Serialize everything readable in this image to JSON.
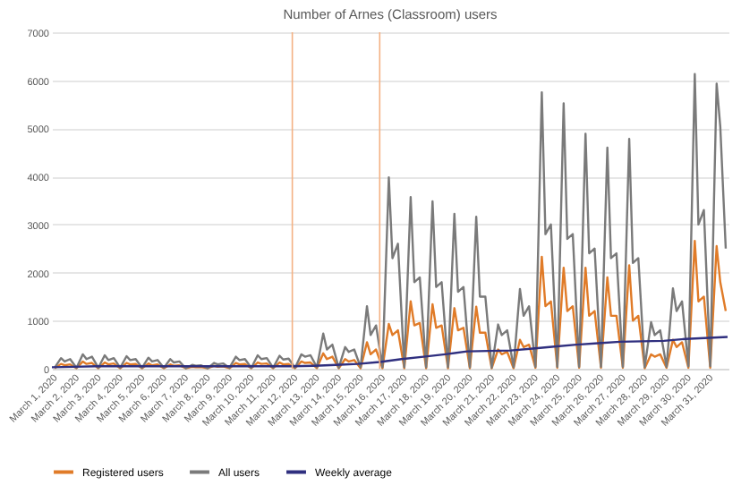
{
  "chart_data": {
    "type": "line",
    "title": "Number of Arnes (Classroom) users",
    "x": [
      "2020-03-01T03:00",
      "2020-03-01T10:00",
      "2020-03-01T14:00",
      "2020-03-01T20:00",
      "2020-03-02T03:00",
      "2020-03-02T10:00",
      "2020-03-02T14:00",
      "2020-03-02T20:00",
      "2020-03-03T03:00",
      "2020-03-03T10:00",
      "2020-03-03T14:00",
      "2020-03-03T20:00",
      "2020-03-04T03:00",
      "2020-03-04T10:00",
      "2020-03-04T14:00",
      "2020-03-04T20:00",
      "2020-03-05T03:00",
      "2020-03-05T10:00",
      "2020-03-05T14:00",
      "2020-03-05T20:00",
      "2020-03-06T03:00",
      "2020-03-06T10:00",
      "2020-03-06T14:00",
      "2020-03-06T20:00",
      "2020-03-07T03:00",
      "2020-03-07T10:00",
      "2020-03-07T14:00",
      "2020-03-07T20:00",
      "2020-03-08T03:00",
      "2020-03-08T10:00",
      "2020-03-08T14:00",
      "2020-03-08T20:00",
      "2020-03-09T03:00",
      "2020-03-09T10:00",
      "2020-03-09T14:00",
      "2020-03-09T20:00",
      "2020-03-10T03:00",
      "2020-03-10T10:00",
      "2020-03-10T14:00",
      "2020-03-10T20:00",
      "2020-03-11T03:00",
      "2020-03-11T10:00",
      "2020-03-11T14:00",
      "2020-03-11T20:00",
      "2020-03-12T03:00",
      "2020-03-12T10:00",
      "2020-03-12T14:00",
      "2020-03-12T20:00",
      "2020-03-13T03:00",
      "2020-03-13T10:00",
      "2020-03-13T14:00",
      "2020-03-13T20:00",
      "2020-03-14T03:00",
      "2020-03-14T10:00",
      "2020-03-14T14:00",
      "2020-03-14T20:00",
      "2020-03-15T03:00",
      "2020-03-15T10:00",
      "2020-03-15T14:00",
      "2020-03-15T20:00",
      "2020-03-16T03:00",
      "2020-03-16T10:00",
      "2020-03-16T14:00",
      "2020-03-16T20:00",
      "2020-03-17T03:00",
      "2020-03-17T10:00",
      "2020-03-17T14:00",
      "2020-03-17T20:00",
      "2020-03-18T03:00",
      "2020-03-18T10:00",
      "2020-03-18T14:00",
      "2020-03-18T20:00",
      "2020-03-19T03:00",
      "2020-03-19T10:00",
      "2020-03-19T14:00",
      "2020-03-19T20:00",
      "2020-03-20T03:00",
      "2020-03-20T10:00",
      "2020-03-20T14:00",
      "2020-03-20T20:00",
      "2020-03-21T03:00",
      "2020-03-21T10:00",
      "2020-03-21T14:00",
      "2020-03-21T20:00",
      "2020-03-22T03:00",
      "2020-03-22T10:00",
      "2020-03-22T14:00",
      "2020-03-22T20:00",
      "2020-03-23T03:00",
      "2020-03-23T10:00",
      "2020-03-23T14:00",
      "2020-03-23T20:00",
      "2020-03-24T03:00",
      "2020-03-24T10:00",
      "2020-03-24T14:00",
      "2020-03-24T20:00",
      "2020-03-25T03:00",
      "2020-03-25T10:00",
      "2020-03-25T14:00",
      "2020-03-25T20:00",
      "2020-03-26T03:00",
      "2020-03-26T10:00",
      "2020-03-26T14:00",
      "2020-03-26T20:00",
      "2020-03-27T03:00",
      "2020-03-27T10:00",
      "2020-03-27T14:00",
      "2020-03-27T20:00",
      "2020-03-28T03:00",
      "2020-03-28T10:00",
      "2020-03-28T14:00",
      "2020-03-28T20:00",
      "2020-03-29T03:00",
      "2020-03-29T10:00",
      "2020-03-29T14:00",
      "2020-03-29T20:00",
      "2020-03-30T03:00",
      "2020-03-30T10:00",
      "2020-03-30T14:00",
      "2020-03-30T20:00",
      "2020-03-31T03:00",
      "2020-03-31T10:00",
      "2020-03-31T14:00",
      "2020-03-31T20:00"
    ],
    "series": [
      {
        "name": "Registered users",
        "color": "#e07b28",
        "values": [
          10,
          100,
          70,
          90,
          10,
          150,
          100,
          120,
          10,
          130,
          90,
          110,
          10,
          120,
          90,
          100,
          10,
          110,
          70,
          90,
          10,
          90,
          60,
          70,
          10,
          40,
          30,
          35,
          10,
          60,
          40,
          50,
          10,
          120,
          90,
          100,
          10,
          130,
          100,
          110,
          10,
          130,
          90,
          100,
          10,
          150,
          120,
          130,
          10,
          320,
          200,
          250,
          10,
          200,
          150,
          180,
          10,
          550,
          300,
          400,
          10,
          930,
          700,
          800,
          10,
          1400,
          900,
          950,
          10,
          1340,
          850,
          900,
          10,
          1260,
          800,
          850,
          10,
          1290,
          750,
          750,
          10,
          400,
          300,
          350,
          10,
          600,
          450,
          500,
          20,
          2330,
          1300,
          1400,
          20,
          2100,
          1200,
          1300,
          20,
          2100,
          1100,
          1200,
          20,
          1900,
          1100,
          1100,
          20,
          2150,
          1000,
          1100,
          10,
          300,
          250,
          300,
          20,
          600,
          450,
          550,
          20,
          2660,
          1400,
          1500,
          20,
          2550,
          1800,
          1200
        ]
      },
      {
        "name": "All users",
        "color": "#7a7a7a",
        "values": [
          20,
          220,
          150,
          200,
          20,
          300,
          200,
          250,
          20,
          280,
          180,
          220,
          20,
          260,
          180,
          200,
          20,
          230,
          150,
          180,
          20,
          200,
          130,
          150,
          10,
          80,
          60,
          70,
          10,
          120,
          90,
          110,
          20,
          250,
          180,
          200,
          20,
          280,
          200,
          220,
          20,
          270,
          190,
          210,
          20,
          300,
          250,
          280,
          30,
          730,
          400,
          500,
          20,
          450,
          350,
          400,
          30,
          1300,
          700,
          900,
          30,
          3980,
          2300,
          2600,
          30,
          3570,
          1800,
          1900,
          30,
          3480,
          1700,
          1800,
          30,
          3220,
          1600,
          1700,
          30,
          3160,
          1500,
          1500,
          20,
          920,
          700,
          800,
          30,
          1660,
          1100,
          1300,
          40,
          5750,
          2800,
          3000,
          40,
          5520,
          2700,
          2800,
          40,
          4890,
          2400,
          2500,
          40,
          4600,
          2300,
          2400,
          40,
          4780,
          2200,
          2300,
          30,
          970,
          700,
          800,
          40,
          1670,
          1200,
          1400,
          50,
          6130,
          3000,
          3300,
          50,
          5930,
          5040,
          2500
        ]
      },
      {
        "name": "Weekly average",
        "color": "#2f2f7f",
        "x": [
          "2020-03-01",
          "2020-03-02",
          "2020-03-03",
          "2020-03-04",
          "2020-03-05",
          "2020-03-06",
          "2020-03-07",
          "2020-03-08",
          "2020-03-09",
          "2020-03-10",
          "2020-03-11",
          "2020-03-12",
          "2020-03-13",
          "2020-03-14",
          "2020-03-15",
          "2020-03-16",
          "2020-03-17",
          "2020-03-18",
          "2020-03-19",
          "2020-03-20",
          "2020-03-21",
          "2020-03-22",
          "2020-03-23",
          "2020-03-24",
          "2020-03-25",
          "2020-03-26",
          "2020-03-27",
          "2020-03-28",
          "2020-03-29",
          "2020-03-30",
          "2020-03-31T22:00"
        ],
        "values": [
          30,
          40,
          50,
          50,
          50,
          50,
          50,
          50,
          50,
          50,
          50,
          50,
          60,
          80,
          100,
          140,
          200,
          250,
          300,
          360,
          370,
          380,
          420,
          460,
          500,
          530,
          560,
          570,
          580,
          620,
          660
        ]
      }
    ],
    "xlim": [
      "2020-03-01",
      "2020-03-31T23:00"
    ],
    "xticks": [
      {
        "value": "2020-03-01",
        "label": "March 1, 2020"
      },
      {
        "value": "2020-03-02",
        "label": "March 2, 2020"
      },
      {
        "value": "2020-03-03",
        "label": "March 3, 2020"
      },
      {
        "value": "2020-03-04",
        "label": "March 4, 2020"
      },
      {
        "value": "2020-03-05",
        "label": "March 5, 2020"
      },
      {
        "value": "2020-03-06",
        "label": "March 6, 2020"
      },
      {
        "value": "2020-03-07",
        "label": "March 7, 2020"
      },
      {
        "value": "2020-03-08",
        "label": "March 8, 2020"
      },
      {
        "value": "2020-03-09",
        "label": "March 9, 2020"
      },
      {
        "value": "2020-03-10",
        "label": "March 10, 2020"
      },
      {
        "value": "2020-03-11",
        "label": "March 11, 2020"
      },
      {
        "value": "2020-03-12",
        "label": "March 12, 2020"
      },
      {
        "value": "2020-03-13",
        "label": "March 13, 2020"
      },
      {
        "value": "2020-03-14",
        "label": "March 14, 2020"
      },
      {
        "value": "2020-03-15",
        "label": "March 15, 2020"
      },
      {
        "value": "2020-03-16",
        "label": "March 16, 2020"
      },
      {
        "value": "2020-03-17",
        "label": "March 17, 2020"
      },
      {
        "value": "2020-03-18",
        "label": "March 18, 2020"
      },
      {
        "value": "2020-03-19",
        "label": "March 19, 2020"
      },
      {
        "value": "2020-03-20",
        "label": "March 20, 2020"
      },
      {
        "value": "2020-03-21",
        "label": "March 21, 2020"
      },
      {
        "value": "2020-03-22",
        "label": "March 22, 2020"
      },
      {
        "value": "2020-03-23",
        "label": "March 23, 2020"
      },
      {
        "value": "2020-03-24",
        "label": "March 24, 2020"
      },
      {
        "value": "2020-03-25",
        "label": "March 25, 2020"
      },
      {
        "value": "2020-03-26",
        "label": "March 26, 2020"
      },
      {
        "value": "2020-03-27",
        "label": "March 27, 2020"
      },
      {
        "value": "2020-03-28",
        "label": "March 28, 2020"
      },
      {
        "value": "2020-03-29",
        "label": "March 29, 2020"
      },
      {
        "value": "2020-03-30",
        "label": "March 30, 2020"
      },
      {
        "value": "2020-03-31",
        "label": "March 31, 2020"
      }
    ],
    "ylim": [
      0,
      7000
    ],
    "yticks": [
      0,
      1000,
      2000,
      3000,
      4000,
      5000,
      6000,
      7000
    ],
    "ref_lines": [
      {
        "axis": "x",
        "value": "2020-03-12",
        "color": "#f4b183"
      },
      {
        "axis": "x",
        "value": "2020-03-16",
        "color": "#f4b183"
      }
    ],
    "grid": "y",
    "legend": "bottom",
    "marker": "none",
    "line_style": "solid"
  }
}
